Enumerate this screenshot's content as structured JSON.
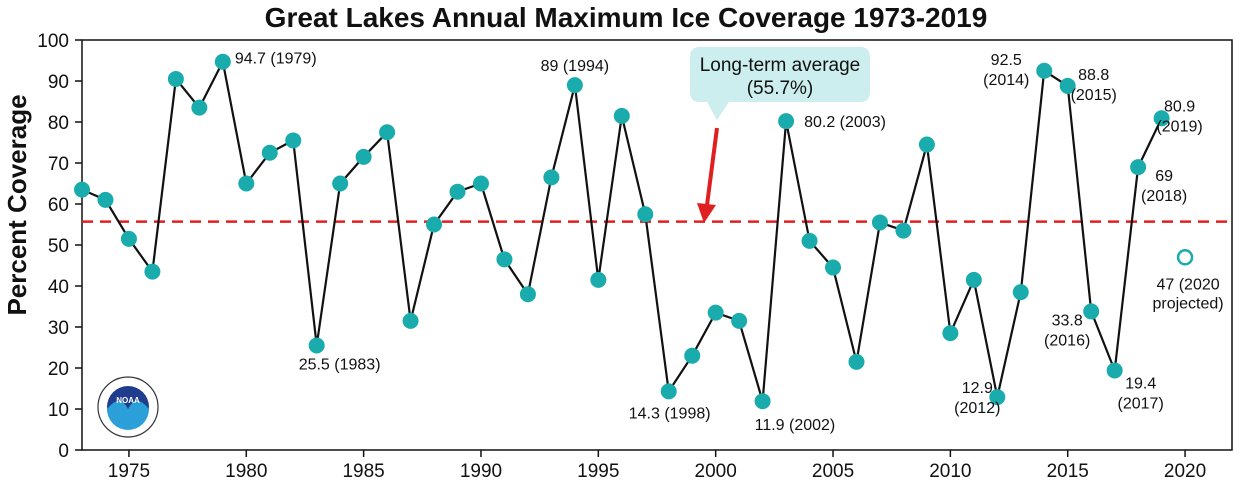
{
  "chart_data": {
    "type": "line",
    "title": "Great Lakes Annual Maximum Ice Coverage 1973-2019",
    "ylabel": "Percent Coverage",
    "xlabel": "",
    "xlim": [
      1973,
      2022
    ],
    "ylim": [
      0,
      100
    ],
    "xticks": [
      1975,
      1980,
      1985,
      1990,
      1995,
      2000,
      2005,
      2010,
      2015,
      2020
    ],
    "yticks": [
      0,
      10,
      20,
      30,
      40,
      50,
      60,
      70,
      80,
      90,
      100
    ],
    "grid": false,
    "series": [
      {
        "color": "#1aacac",
        "x": [
          1973,
          1974,
          1975,
          1976,
          1977,
          1978,
          1979,
          1980,
          1981,
          1982,
          1983,
          1984,
          1985,
          1986,
          1987,
          1988,
          1989,
          1990,
          1991,
          1992,
          1993,
          1994,
          1995,
          1996,
          1997,
          1998,
          1999,
          2000,
          2001,
          2002,
          2003,
          2004,
          2005,
          2006,
          2007,
          2008,
          2009,
          2010,
          2011,
          2012,
          2013,
          2014,
          2015,
          2016,
          2017,
          2018,
          2019
        ],
        "values": [
          63.5,
          61,
          51.5,
          43.5,
          90.5,
          83.5,
          94.7,
          65,
          72.5,
          75.5,
          25.5,
          65,
          71.5,
          77.5,
          31.5,
          55,
          63,
          65,
          46.5,
          38,
          66.5,
          89,
          41.5,
          81.5,
          57.5,
          14.3,
          23,
          33.5,
          31.5,
          11.9,
          80.2,
          51,
          44.5,
          21.5,
          55.5,
          53.5,
          74.5,
          28.5,
          41.5,
          12.9,
          38.5,
          92.5,
          88.8,
          33.8,
          19.4,
          69,
          80.9
        ]
      }
    ],
    "projected": {
      "x": 2020,
      "value": 47,
      "label": "47 (2020 projected)"
    },
    "average": {
      "value": 55.7,
      "color": "#e02020",
      "callout_line1": "Long-term average",
      "callout_line2": "(55.7%)"
    },
    "annotations": [
      {
        "x": 1979,
        "lines": [
          "94.7 (1979)"
        ]
      },
      {
        "x": 1983,
        "lines": [
          "25.5 (1983)"
        ]
      },
      {
        "x": 1994,
        "lines": [
          "89 (1994)"
        ]
      },
      {
        "x": 1998,
        "lines": [
          "14.3 (1998)"
        ]
      },
      {
        "x": 2002,
        "lines": [
          "11.9 (2002)"
        ]
      },
      {
        "x": 2003,
        "lines": [
          "80.2 (2003)"
        ]
      },
      {
        "x": 2012,
        "lines": [
          "12.9",
          "(2012)"
        ]
      },
      {
        "x": 2014,
        "lines": [
          "92.5",
          "(2014)"
        ]
      },
      {
        "x": 2015,
        "lines": [
          "88.8",
          "(2015)"
        ]
      },
      {
        "x": 2016,
        "lines": [
          "33.8",
          "(2016)"
        ]
      },
      {
        "x": 2017,
        "lines": [
          "19.4",
          "(2017)"
        ]
      },
      {
        "x": 2018,
        "lines": [
          "69",
          "(2018)"
        ]
      },
      {
        "x": 2019,
        "lines": [
          "80.9",
          "(2019)"
        ]
      },
      {
        "x": 2020,
        "lines": [
          "47 (2020",
          "projected)"
        ]
      }
    ],
    "logo": {
      "name": "noaa-logo",
      "text": "NOAA"
    }
  }
}
